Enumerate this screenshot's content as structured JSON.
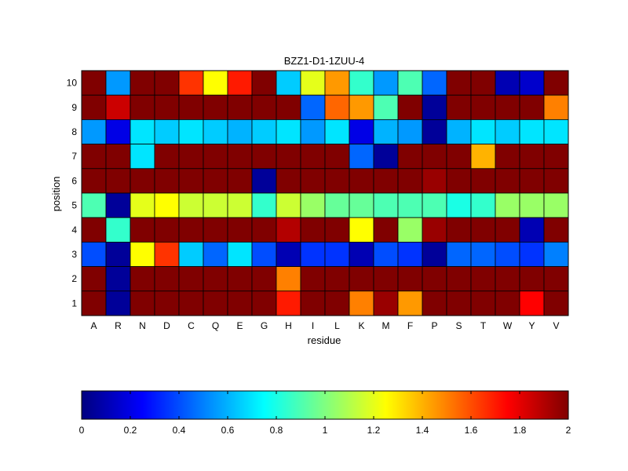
{
  "chart_data": {
    "type": "heatmap",
    "title": "BZZ1-D1-1ZUU-4",
    "xlabel": "residue",
    "ylabel": "position",
    "x": [
      "A",
      "R",
      "N",
      "D",
      "C",
      "Q",
      "E",
      "G",
      "H",
      "I",
      "L",
      "K",
      "M",
      "F",
      "P",
      "S",
      "T",
      "W",
      "Y",
      "V"
    ],
    "y": [
      "10",
      "9",
      "8",
      "7",
      "6",
      "5",
      "4",
      "3",
      "2",
      "1"
    ],
    "values": [
      [
        2.0,
        0.55,
        2.0,
        2.0,
        1.65,
        1.25,
        1.7,
        2.0,
        0.65,
        1.2,
        1.45,
        0.85,
        0.55,
        0.9,
        0.45,
        2.0,
        2.0,
        0.1,
        0.15,
        2.0
      ],
      [
        2.0,
        1.85,
        2.0,
        2.0,
        2.0,
        2.0,
        2.0,
        2.0,
        2.0,
        0.45,
        1.55,
        1.45,
        0.9,
        2.0,
        0.05,
        2.0,
        2.0,
        2.0,
        2.0,
        1.5
      ],
      [
        0.55,
        0.2,
        0.7,
        0.65,
        0.7,
        0.65,
        0.6,
        0.65,
        0.7,
        0.55,
        0.7,
        0.2,
        0.6,
        0.55,
        0.05,
        0.6,
        0.7,
        0.65,
        0.7,
        0.7
      ],
      [
        2.0,
        2.0,
        0.7,
        2.0,
        2.0,
        2.0,
        2.0,
        2.0,
        2.0,
        2.0,
        2.0,
        0.45,
        0.05,
        2.0,
        2.0,
        2.0,
        1.4,
        2.0,
        2.0,
        2.0
      ],
      [
        2.0,
        2.0,
        2.0,
        2.0,
        2.0,
        2.0,
        2.0,
        0.05,
        2.0,
        2.0,
        2.0,
        2.0,
        2.0,
        2.0,
        1.95,
        2.0,
        2.0,
        2.0,
        2.0,
        2.0
      ],
      [
        0.9,
        0.05,
        1.2,
        1.25,
        1.15,
        1.15,
        1.15,
        0.85,
        1.15,
        1.05,
        0.95,
        0.95,
        0.9,
        0.9,
        0.9,
        0.8,
        0.85,
        1.05,
        1.05,
        1.05
      ],
      [
        2.0,
        0.85,
        2.0,
        2.0,
        2.0,
        2.0,
        2.0,
        2.0,
        1.9,
        2.0,
        2.0,
        1.25,
        2.0,
        1.05,
        1.95,
        2.0,
        2.0,
        2.0,
        0.1,
        2.0
      ],
      [
        0.4,
        0.05,
        1.25,
        1.65,
        0.65,
        0.45,
        0.7,
        0.4,
        0.1,
        0.35,
        0.35,
        0.1,
        0.4,
        0.35,
        0.05,
        0.45,
        0.45,
        0.4,
        0.35,
        0.5
      ],
      [
        2.0,
        0.05,
        2.0,
        2.0,
        2.0,
        2.0,
        2.0,
        2.0,
        1.5,
        2.0,
        2.0,
        2.0,
        2.0,
        2.0,
        2.0,
        2.0,
        2.0,
        2.0,
        2.0,
        2.0
      ],
      [
        2.0,
        0.05,
        2.0,
        2.0,
        2.0,
        2.0,
        2.0,
        2.0,
        1.7,
        2.0,
        2.0,
        1.5,
        1.95,
        1.45,
        2.0,
        2.0,
        2.0,
        2.0,
        1.75,
        2.0
      ]
    ],
    "colormap": "jet",
    "clim": [
      0,
      2
    ],
    "colorbar": {
      "orientation": "horizontal",
      "ticks": [
        0,
        0.2,
        0.4,
        0.6,
        0.8,
        1,
        1.2,
        1.4,
        1.6,
        1.8,
        2
      ],
      "tick_labels": [
        "0",
        "0.2",
        "0.4",
        "0.6",
        "0.8",
        "1",
        "1.2",
        "1.4",
        "1.6",
        "1.8",
        "2"
      ]
    },
    "grid": true,
    "legend": "none",
    "colors": {
      "axis": "#000000",
      "cell_border": "#000000",
      "background": "#ffffff"
    }
  }
}
